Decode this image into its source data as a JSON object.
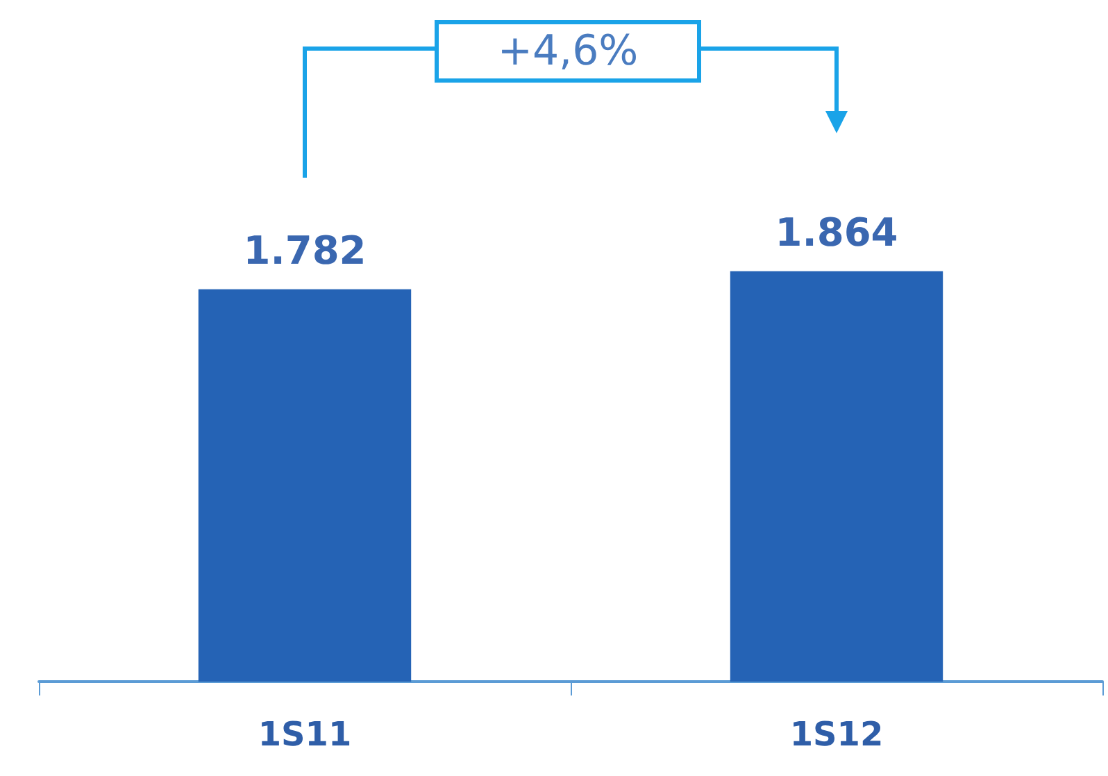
{
  "chart_data": {
    "type": "bar",
    "categories": [
      "1S11",
      "1S12"
    ],
    "values": [
      1782,
      1864
    ],
    "value_labels": [
      "1.782",
      "1.864"
    ],
    "color": "#2563b5",
    "annotations": [
      "+4,6%"
    ]
  }
}
